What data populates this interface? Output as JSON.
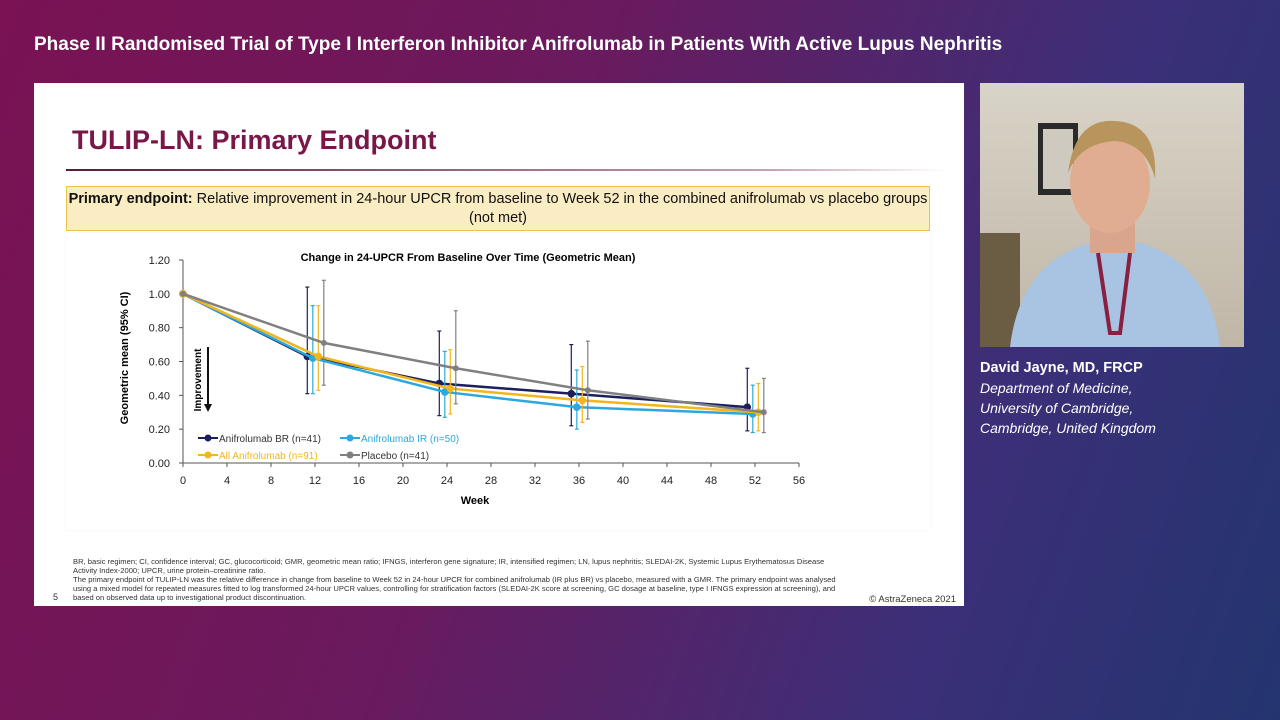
{
  "header": {
    "title": "Phase II Randomised Trial of Type I Interferon Inhibitor Anifrolumab in Patients With Active Lupus Nephritis"
  },
  "slide": {
    "title": "TULIP-LN: Primary Endpoint",
    "endpoint_label": "Primary endpoint:",
    "endpoint_text": " Relative improvement in 24-hour UPCR from baseline to Week 52 in the combined anifrolumab vs placebo groups (not met)",
    "improvement_label": "Improvement",
    "footnote_1": "BR, basic regimen; CI, confidence interval; GC, glucocorticoid; GMR, geometric mean ratio; IFNGS, interferon gene signature; IR, intensified regimen; LN, lupus nephritis; SLEDAI-2K, Systemic Lupus Erythematosus Disease Activity Index-2000; UPCR, urine protein–creatinine ratio.",
    "footnote_2": "The primary endpoint of TULIP-LN was the relative difference in change from baseline to Week 52 in 24-hour UPCR for combined anifrolumab (IR plus BR) vs placebo, measured with a GMR. The primary endpoint was analysed using a mixed model for repeated measures fitted to log transformed 24-hour UPCR values, controlling for stratification factors (SLEDAI-2K score at screening, GC dosage at baseline, type I IFNGS expression at screening), and based on observed data up to investigational product discontinuation.",
    "page_number": "5",
    "copyright": "© AstraZeneca 2021"
  },
  "speaker": {
    "name": "David Jayne, MD, FRCP",
    "affiliation_1": "Department of Medicine,",
    "affiliation_2": "University of Cambridge,",
    "affiliation_3": "Cambridge, United Kingdom"
  },
  "chart_data": {
    "type": "line",
    "title": "Change in 24-UPCR From Baseline Over Time (Geometric Mean)",
    "xlabel": "Week",
    "ylabel": "Geometric mean (95% CI)",
    "xlim": [
      0,
      56
    ],
    "ylim": [
      0,
      1.2
    ],
    "xticks": [
      "0",
      "4",
      "8",
      "12",
      "16",
      "20",
      "24",
      "28",
      "32",
      "36",
      "40",
      "44",
      "48",
      "52",
      "56"
    ],
    "yticks": [
      "0.00",
      "0.20",
      "0.40",
      "0.60",
      "0.80",
      "1.00",
      "1.20"
    ],
    "grid": false,
    "legend": "bottom-left",
    "x": [
      0,
      12,
      24,
      36,
      52
    ],
    "series": [
      {
        "name": "Anifrolumab BR (n=41)",
        "color": "#1b1f5e",
        "values": [
          1.0,
          0.63,
          0.47,
          0.41,
          0.33
        ],
        "ci_low": [
          null,
          0.41,
          0.28,
          0.22,
          0.19
        ],
        "ci_high": [
          null,
          1.04,
          0.78,
          0.7,
          0.56
        ]
      },
      {
        "name": "Anifrolumab IR (n=50)",
        "color": "#2ba8de",
        "values": [
          1.0,
          0.62,
          0.42,
          0.33,
          0.29
        ],
        "ci_low": [
          null,
          0.41,
          0.27,
          0.2,
          0.18
        ],
        "ci_high": [
          null,
          0.93,
          0.66,
          0.55,
          0.46
        ]
      },
      {
        "name": "All Anifrolumab (n=91)",
        "color": "#f2b61c",
        "values": [
          1.0,
          0.63,
          0.44,
          0.37,
          0.3
        ],
        "ci_low": [
          null,
          0.43,
          0.29,
          0.24,
          0.19
        ],
        "ci_high": [
          null,
          0.93,
          0.67,
          0.57,
          0.47
        ]
      },
      {
        "name": "Placebo (n=41)",
        "color": "#808080",
        "values": [
          1.0,
          0.71,
          0.56,
          0.43,
          0.3
        ],
        "ci_low": [
          null,
          0.46,
          0.35,
          0.26,
          0.18
        ],
        "ci_high": [
          null,
          1.08,
          0.9,
          0.72,
          0.5
        ]
      }
    ]
  }
}
